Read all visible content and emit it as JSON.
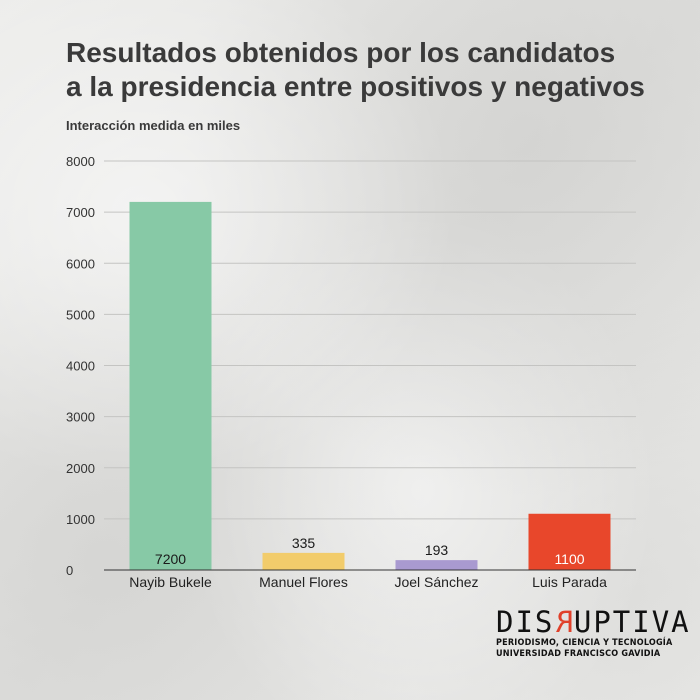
{
  "chart_data": {
    "type": "bar",
    "title_lines": [
      "Resultados obtenidos por los candidatos",
      "a la presidencia entre positivos y negativos"
    ],
    "subtitle": "Interacción medida en miles",
    "categories": [
      "Nayib Bukele",
      "Manuel Flores",
      "Joel Sánchez",
      "Luis Parada"
    ],
    "values": [
      7200,
      335,
      193,
      1100
    ],
    "value_labels": [
      "7200",
      "335",
      "193",
      "1100"
    ],
    "colors": [
      "#87c9a6",
      "#f2cc6b",
      "#a99ad0",
      "#e8472b"
    ],
    "label_colors": [
      "#1a1a1a",
      "#1a1a1a",
      "#1a1a1a",
      "#ffffff"
    ],
    "ylim": [
      0,
      8000
    ],
    "yticks": [
      0,
      1000,
      2000,
      3000,
      4000,
      5000,
      6000,
      7000,
      8000
    ],
    "grid": true,
    "legend": "none"
  },
  "branding": {
    "logo_pre": "DIS",
    "logo_accent": "R",
    "logo_post": "UPTIVA",
    "tagline": "PERIODISMO, CIENCIA Y TECNOLOGÍA",
    "org": "UNIVERSIDAD FRANCISCO GAVIDIA"
  }
}
